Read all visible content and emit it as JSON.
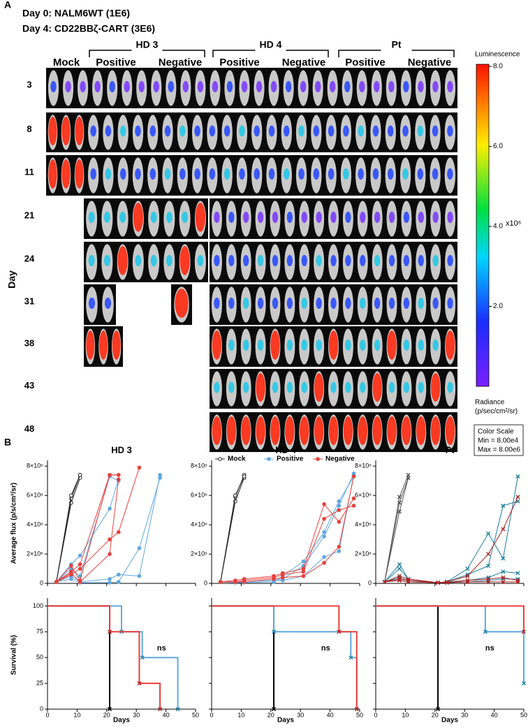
{
  "panel_a": {
    "letter": "A",
    "header": [
      "Day 0: NALM6WT (1E6)",
      "Day 4: CD22BBζ-CART (3E6)"
    ],
    "mock": "Mock",
    "groups": [
      {
        "name": "HD 3",
        "arms": [
          "Positive",
          "Negative"
        ]
      },
      {
        "name": "HD 4",
        "arms": [
          "Positive",
          "Negative"
        ]
      },
      {
        "name": "Pt",
        "arms": [
          "Positive",
          "Negative"
        ]
      }
    ],
    "day_label": "Day",
    "days": [
      "3",
      "8",
      "11",
      "21",
      "24",
      "31",
      "38",
      "43",
      "48"
    ],
    "colorbar": {
      "title": "Luminescence",
      "ylim": [
        0,
        8
      ],
      "yticks": [
        {
          "value": 2,
          "label": "2.0"
        },
        {
          "value": 4,
          "label": "4.0"
        },
        {
          "value": 6,
          "label": "6.0"
        },
        {
          "value": 8,
          "label": "8.0"
        }
      ],
      "unit": "x10⁶",
      "radiance": [
        "Radiance",
        "(p/sec/cm²/sr)"
      ],
      "scale": [
        "Color Scale",
        "Min = 8.00e4",
        "Max = 8.00e6"
      ]
    }
  },
  "panel_b": {
    "letter": "B"
  },
  "chart_data": [
    {
      "type": "line",
      "title": "HD 3",
      "ylabel": "Average flux (p/s/cm²/sr)",
      "xlim": [
        0,
        50
      ],
      "xticks": [
        0,
        10,
        20,
        30,
        40,
        50
      ],
      "ylim": [
        0,
        8200000
      ],
      "yticks": [
        0,
        {
          "value": 2000000,
          "label": "2×10⁶"
        },
        {
          "value": 4000000,
          "label": "4×10⁶"
        },
        {
          "value": 6000000,
          "label": "6×10⁶"
        },
        {
          "value": 8000000,
          "label": "8×10⁶"
        }
      ],
      "groups": [
        {
          "color": "#222222",
          "marker": "open-circle",
          "lines": [
            {
              "x": [
                3,
                8,
                11
              ],
              "values": [
                100000,
                5500000,
                7200000
              ]
            },
            {
              "x": [
                3,
                8,
                11
              ],
              "values": [
                100000,
                5800000,
                7400000
              ]
            },
            {
              "x": [
                3,
                8,
                11
              ],
              "values": [
                100000,
                6000000,
                7400000
              ]
            }
          ]
        },
        {
          "color": "#5fa8e0",
          "marker": "circle",
          "lines": [
            {
              "x": [
                3,
                8,
                11,
                21,
                24
              ],
              "values": [
                100000,
                1300000,
                1900000,
                5100000,
                7100000
              ]
            },
            {
              "x": [
                3,
                8,
                11,
                21,
                24
              ],
              "values": [
                100000,
                1000000,
                500000,
                7300000,
                7000000
              ]
            },
            {
              "x": [
                3,
                8,
                11,
                21,
                24,
                31,
                38
              ],
              "values": [
                100000,
                500000,
                100000,
                300000,
                600000,
                500000,
                7400000
              ]
            },
            {
              "x": [
                3,
                8,
                11,
                21,
                24,
                31,
                38
              ],
              "values": [
                100000,
                300000,
                50000,
                50000,
                100000,
                2400000,
                7200000
              ]
            }
          ]
        },
        {
          "color": "#e8403c",
          "marker": "circle",
          "lines": [
            {
              "x": [
                3,
                8,
                11,
                21,
                24
              ],
              "values": [
                100000,
                1200000,
                200000,
                7400000,
                7400000
              ]
            },
            {
              "x": [
                3,
                8,
                11,
                21,
                24
              ],
              "values": [
                100000,
                800000,
                1300000,
                7400000,
                7400000
              ]
            },
            {
              "x": [
                3,
                8,
                11,
                21,
                24,
                31
              ],
              "values": [
                100000,
                600000,
                1000000,
                3000000,
                3500000,
                7900000
              ]
            },
            {
              "x": [
                3,
                8,
                11,
                21,
                24
              ],
              "values": [
                100000,
                700000,
                100000,
                2000000,
                7100000
              ]
            }
          ]
        }
      ]
    },
    {
      "type": "line",
      "title": "HD 4",
      "xlim": [
        0,
        50
      ],
      "xticks": [
        0,
        10,
        20,
        30,
        40,
        50
      ],
      "ylim": [
        0,
        8200000
      ],
      "yticks": [
        0,
        {
          "value": 2000000,
          "label": "2×10⁶"
        },
        {
          "value": 4000000,
          "label": "4×10⁶"
        },
        {
          "value": 6000000,
          "label": "6×10⁶"
        },
        {
          "value": 8000000,
          "label": "8×10⁶"
        }
      ],
      "legend": [
        {
          "name": "Mock",
          "color": "#222222",
          "marker": "open-circle"
        },
        {
          "name": "Positive",
          "color": "#5fa8e0",
          "marker": "circle"
        },
        {
          "name": "Negative",
          "color": "#e8403c",
          "marker": "circle"
        }
      ],
      "groups": [
        {
          "color": "#222222",
          "marker": "open-circle",
          "lines": [
            {
              "x": [
                3,
                8,
                11
              ],
              "values": [
                100000,
                5600000,
                7200000
              ]
            },
            {
              "x": [
                3,
                8,
                11
              ],
              "values": [
                100000,
                5900000,
                7400000
              ]
            },
            {
              "x": [
                3,
                8,
                11
              ],
              "values": [
                100000,
                6000000,
                7300000
              ]
            }
          ]
        },
        {
          "color": "#5fa8e0",
          "marker": "circle",
          "lines": [
            {
              "x": [
                3,
                8,
                11,
                21,
                24,
                31,
                38,
                43,
                48
              ],
              "values": [
                100000,
                100000,
                100000,
                200000,
                200000,
                500000,
                1800000,
                2200000,
                7400000
              ]
            },
            {
              "x": [
                3,
                8,
                11,
                21,
                24,
                31,
                38,
                43,
                48
              ],
              "values": [
                100000,
                100000,
                100000,
                200000,
                300000,
                1200000,
                3200000,
                5300000,
                7500000
              ]
            },
            {
              "x": [
                3,
                8,
                11,
                21,
                24,
                31,
                38,
                43,
                48
              ],
              "values": [
                100000,
                50000,
                50000,
                100000,
                500000,
                1500000,
                3500000,
                5600000,
                7300000
              ]
            }
          ]
        },
        {
          "color": "#e8403c",
          "marker": "circle",
          "lines": [
            {
              "x": [
                3,
                8,
                11,
                21,
                24,
                31,
                38,
                43,
                48
              ],
              "values": [
                100000,
                200000,
                300000,
                500000,
                700000,
                1000000,
                5400000,
                4200000,
                5800000
              ]
            },
            {
              "x": [
                3,
                8,
                11,
                21,
                24,
                31,
                38,
                43,
                48
              ],
              "values": [
                100000,
                100000,
                200000,
                400000,
                600000,
                800000,
                4400000,
                5000000,
                5300000
              ]
            },
            {
              "x": [
                3,
                8,
                11,
                21,
                24,
                31,
                38,
                43,
                48
              ],
              "values": [
                100000,
                100000,
                100000,
                300000,
                400000,
                500000,
                1400000,
                2500000,
                7300000
              ]
            }
          ]
        }
      ]
    },
    {
      "type": "line",
      "title": "Pt",
      "xlim": [
        0,
        50
      ],
      "xticks": [
        0,
        10,
        20,
        30,
        40,
        50
      ],
      "ylim": [
        0,
        8200000
      ],
      "yticks": [
        0,
        {
          "value": 2000000,
          "label": "2×10⁶"
        },
        {
          "value": 4000000,
          "label": "4×10⁶"
        },
        {
          "value": 6000000,
          "label": "6×10⁶"
        },
        {
          "value": 8000000,
          "label": "8×10⁶"
        }
      ],
      "groups": [
        {
          "color": "#555555",
          "marker": "x",
          "lines": [
            {
              "x": [
                3,
                8,
                11
              ],
              "values": [
                100000,
                5900000,
                7400000
              ]
            },
            {
              "x": [
                3,
                8,
                11
              ],
              "values": [
                100000,
                5500000,
                7200000
              ]
            },
            {
              "x": [
                3,
                8,
                11
              ],
              "values": [
                100000,
                4900000,
                7200000
              ]
            }
          ]
        },
        {
          "color": "#1b7f9e",
          "marker": "x",
          "lines": [
            {
              "x": [
                3,
                8,
                11,
                21,
                24,
                31,
                38,
                43,
                48
              ],
              "values": [
                100000,
                1300000,
                300000,
                50000,
                100000,
                1000000,
                3400000,
                1700000,
                7300000
              ]
            },
            {
              "x": [
                3,
                8,
                11,
                21,
                24,
                31,
                38,
                43,
                48
              ],
              "values": [
                100000,
                1000000,
                300000,
                50000,
                100000,
                600000,
                1200000,
                5300000,
                5600000
              ]
            },
            {
              "x": [
                3,
                8,
                11,
                21,
                24,
                31,
                38,
                43,
                48
              ],
              "values": [
                100000,
                400000,
                200000,
                50000,
                100000,
                200000,
                400000,
                800000,
                700000
              ]
            },
            {
              "x": [
                3,
                8,
                11,
                21,
                24,
                31,
                38,
                43,
                48
              ],
              "values": [
                100000,
                200000,
                100000,
                50000,
                50000,
                100000,
                200000,
                300000,
                300000
              ]
            }
          ]
        },
        {
          "color": "#b22222",
          "marker": "x",
          "lines": [
            {
              "x": [
                3,
                8,
                11,
                21,
                24,
                31,
                38,
                43,
                48
              ],
              "values": [
                100000,
                500000,
                300000,
                50000,
                100000,
                500000,
                2000000,
                3700000,
                5900000
              ]
            },
            {
              "x": [
                3,
                8,
                11,
                21,
                24,
                31,
                38,
                43,
                48
              ],
              "values": [
                100000,
                300000,
                200000,
                50000,
                50000,
                200000,
                300000,
                400000,
                200000
              ]
            },
            {
              "x": [
                3,
                8,
                11,
                21,
                24,
                31,
                38,
                43,
                48
              ],
              "values": [
                100000,
                200000,
                100000,
                50000,
                50000,
                100000,
                100000,
                100000,
                100000
              ]
            }
          ]
        }
      ]
    },
    {
      "type": "step",
      "xlabel": "Days",
      "ylabel": "Survival (%)",
      "annotation": "ns",
      "xlim": [
        0,
        50
      ],
      "xticks": [
        0,
        10,
        20,
        30,
        40,
        50
      ],
      "ylim": [
        0,
        105
      ],
      "yticks": [
        0,
        25,
        50,
        75,
        100
      ],
      "groups": [
        {
          "color": "#000000",
          "x": [
            0,
            21
          ],
          "values": [
            100,
            0
          ]
        },
        {
          "color": "#5fa8e0",
          "x": [
            0,
            25,
            32,
            44
          ],
          "values": [
            100,
            75,
            50,
            0
          ]
        },
        {
          "color": "#e8403c",
          "x": [
            0,
            21,
            31,
            38
          ],
          "values": [
            100,
            75,
            25,
            0
          ]
        }
      ]
    },
    {
      "type": "step",
      "xlabel": "Days",
      "annotation": "ns",
      "xlim": [
        0,
        50
      ],
      "xticks": [
        0,
        10,
        20,
        30,
        40,
        50
      ],
      "ylim": [
        0,
        105
      ],
      "yticks": [
        0,
        25,
        50,
        75,
        100
      ],
      "groups": [
        {
          "color": "#000000",
          "x": [
            0,
            21
          ],
          "values": [
            100,
            0
          ]
        },
        {
          "color": "#5fa8e0",
          "x": [
            0,
            21,
            47,
            49
          ],
          "values": [
            100,
            75,
            50,
            0
          ]
        },
        {
          "color": "#e8403c",
          "x": [
            0,
            43,
            49
          ],
          "values": [
            100,
            75,
            0
          ]
        }
      ]
    },
    {
      "type": "step",
      "xlabel": "Days",
      "annotation": "ns",
      "xlim": [
        0,
        50
      ],
      "xticks": [
        0,
        10,
        20,
        30,
        40,
        50
      ],
      "ylim": [
        0,
        105
      ],
      "yticks": [
        0,
        25,
        50,
        75,
        100
      ],
      "groups": [
        {
          "color": "#000000",
          "x": [
            0,
            21
          ],
          "values": [
            100,
            0
          ]
        },
        {
          "color": "#5fa8e0",
          "x": [
            0,
            37,
            50
          ],
          "values": [
            100,
            75,
            25
          ]
        },
        {
          "color": "#e8403c",
          "x": [
            0,
            50
          ],
          "values": [
            100,
            75
          ]
        }
      ]
    }
  ]
}
